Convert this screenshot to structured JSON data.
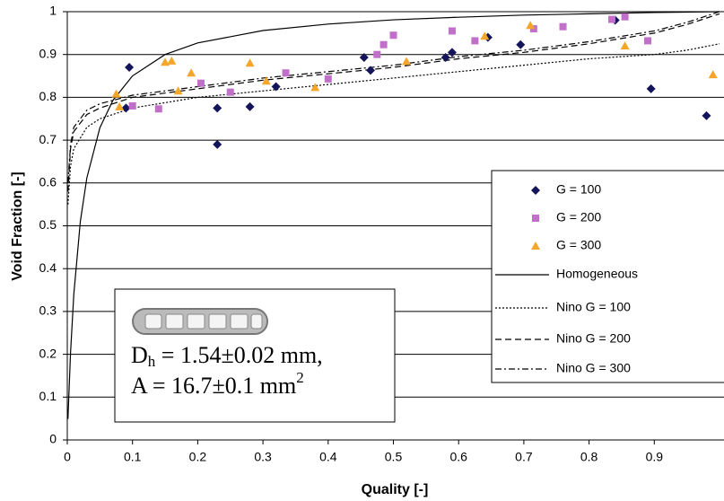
{
  "chart_data": {
    "type": "scatter",
    "x_label": "Quality [-]",
    "y_label": "Void Fraction [-]",
    "xlim": [
      0,
      1
    ],
    "ylim": [
      0,
      1
    ],
    "xticks": [
      0,
      0.1,
      0.2,
      0.3,
      0.4,
      0.5,
      0.6,
      0.7,
      0.8,
      0.9
    ],
    "yticks": [
      0,
      0.1,
      0.2,
      0.3,
      0.4,
      0.5,
      0.6,
      0.7,
      0.8,
      0.9,
      1
    ],
    "grid": true,
    "legend": "right",
    "series": [
      {
        "name": "G = 100",
        "type": "scatter",
        "marker": "diamond",
        "color": "#14145a",
        "x": [
          0.09,
          0.095,
          0.23,
          0.23,
          0.28,
          0.32,
          0.455,
          0.465,
          0.58,
          0.59,
          0.645,
          0.695,
          0.84,
          0.895,
          0.98
        ],
        "values": [
          0.775,
          0.87,
          0.69,
          0.775,
          0.778,
          0.825,
          0.893,
          0.863,
          0.893,
          0.905,
          0.94,
          0.923,
          0.98,
          0.82,
          0.757
        ]
      },
      {
        "name": "G = 200",
        "type": "scatter",
        "marker": "square",
        "color": "#c070c8",
        "x": [
          0.1,
          0.14,
          0.205,
          0.25,
          0.335,
          0.4,
          0.475,
          0.485,
          0.5,
          0.59,
          0.625,
          0.715,
          0.76,
          0.835,
          0.855,
          0.89
        ],
        "values": [
          0.78,
          0.773,
          0.833,
          0.812,
          0.857,
          0.843,
          0.9,
          0.923,
          0.945,
          0.955,
          0.932,
          0.96,
          0.965,
          0.982,
          0.988,
          0.932
        ]
      },
      {
        "name": "G = 300",
        "type": "scatter",
        "marker": "triangle",
        "color": "#f4a62a",
        "x": [
          0.075,
          0.08,
          0.15,
          0.16,
          0.17,
          0.19,
          0.28,
          0.305,
          0.38,
          0.52,
          0.64,
          0.71,
          0.855,
          0.99
        ],
        "values": [
          0.808,
          0.778,
          0.882,
          0.885,
          0.815,
          0.857,
          0.88,
          0.838,
          0.823,
          0.884,
          0.943,
          0.968,
          0.92,
          0.853
        ]
      },
      {
        "name": "Homogeneous",
        "type": "line",
        "dash": "none",
        "color": "#000000",
        "x": [
          0.001,
          0.005,
          0.01,
          0.02,
          0.03,
          0.05,
          0.07,
          0.1,
          0.15,
          0.2,
          0.3,
          0.4,
          0.5,
          0.6,
          0.7,
          0.8,
          0.9,
          1
        ],
        "values": [
          0.049,
          0.204,
          0.34,
          0.51,
          0.612,
          0.729,
          0.793,
          0.85,
          0.9,
          0.927,
          0.956,
          0.971,
          0.981,
          0.987,
          0.992,
          0.995,
          0.998,
          1
        ]
      },
      {
        "name": "Nino G = 100",
        "type": "line",
        "dash": "2,2",
        "color": "#000000",
        "x": [
          0.001,
          0.005,
          0.01,
          0.03,
          0.05,
          0.1,
          0.2,
          0.3,
          0.4,
          0.5,
          0.6,
          0.7,
          0.8,
          0.9,
          0.95,
          1
        ],
        "values": [
          0.55,
          0.64,
          0.68,
          0.73,
          0.75,
          0.775,
          0.8,
          0.815,
          0.83,
          0.845,
          0.86,
          0.875,
          0.89,
          0.9,
          0.91,
          0.925
        ]
      },
      {
        "name": "Nino G = 200",
        "type": "line",
        "dash": "7,4",
        "color": "#000000",
        "x": [
          0.001,
          0.005,
          0.01,
          0.03,
          0.05,
          0.1,
          0.2,
          0.3,
          0.4,
          0.5,
          0.6,
          0.7,
          0.8,
          0.9,
          0.95,
          1
        ],
        "values": [
          0.58,
          0.68,
          0.72,
          0.76,
          0.775,
          0.8,
          0.82,
          0.84,
          0.855,
          0.87,
          0.89,
          0.905,
          0.925,
          0.95,
          0.97,
          0.995
        ]
      },
      {
        "name": "Nino G = 300",
        "type": "line",
        "dash": "7,3,2,3",
        "color": "#000000",
        "x": [
          0.001,
          0.005,
          0.01,
          0.03,
          0.05,
          0.1,
          0.2,
          0.3,
          0.4,
          0.5,
          0.6,
          0.7,
          0.8,
          0.9,
          0.95,
          1
        ],
        "values": [
          0.6,
          0.69,
          0.73,
          0.77,
          0.785,
          0.805,
          0.825,
          0.845,
          0.86,
          0.875,
          0.895,
          0.91,
          0.93,
          0.955,
          0.975,
          1
        ]
      }
    ],
    "annotation": {
      "line1": {
        "symbol": "D",
        "subscript": "h",
        "rest": " = 1.54±0.02 mm,"
      },
      "line2": {
        "text": "A = 16.7±0.1 mm",
        "superscript": "2"
      }
    }
  }
}
